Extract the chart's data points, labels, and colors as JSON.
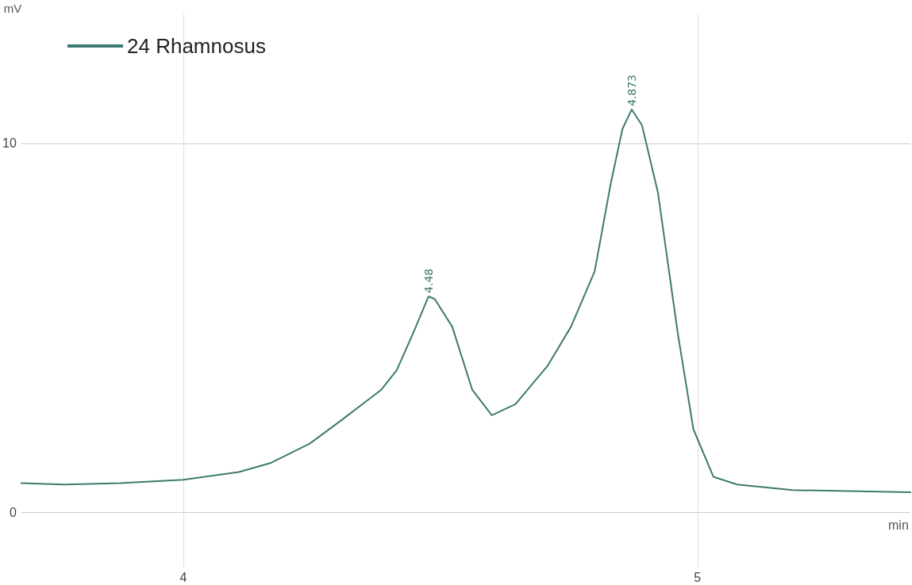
{
  "chart_data": {
    "type": "line",
    "xlabel": "min",
    "ylabel": "mV",
    "xlim": [
      3.685,
      5.414
    ],
    "xticks": [
      4,
      5
    ],
    "ylim": [
      -1.5,
      13.5
    ],
    "yticks": [
      0,
      10
    ],
    "grid": true,
    "legend": "top left",
    "marker": "none",
    "line_style": "solid",
    "series": [
      {
        "name": "24 Rhamnosus",
        "color": "#3d7a70",
        "x": [
          3.685,
          3.769,
          3.877,
          4.0,
          4.108,
          4.169,
          4.246,
          4.308,
          4.385,
          4.415,
          4.446,
          4.477,
          4.489,
          4.523,
          4.562,
          4.6,
          4.646,
          4.708,
          4.754,
          4.8,
          4.831,
          4.854,
          4.872,
          4.892,
          4.923,
          4.962,
          4.992,
          5.031,
          5.077,
          5.185,
          5.414
        ],
        "values": [
          0.79,
          0.75,
          0.79,
          0.88,
          1.09,
          1.33,
          1.86,
          2.5,
          3.32,
          3.85,
          4.82,
          5.85,
          5.78,
          5.03,
          3.32,
          2.63,
          2.93,
          3.96,
          5.03,
          6.53,
          8.89,
          10.39,
          10.92,
          10.49,
          8.67,
          4.82,
          2.25,
          0.96,
          0.75,
          0.6,
          0.54
        ]
      }
    ],
    "annotations": [
      {
        "text": "4.48",
        "x": 4.477,
        "y": 5.85
      },
      {
        "text": "4.873",
        "x": 4.872,
        "y": 10.92
      }
    ]
  }
}
